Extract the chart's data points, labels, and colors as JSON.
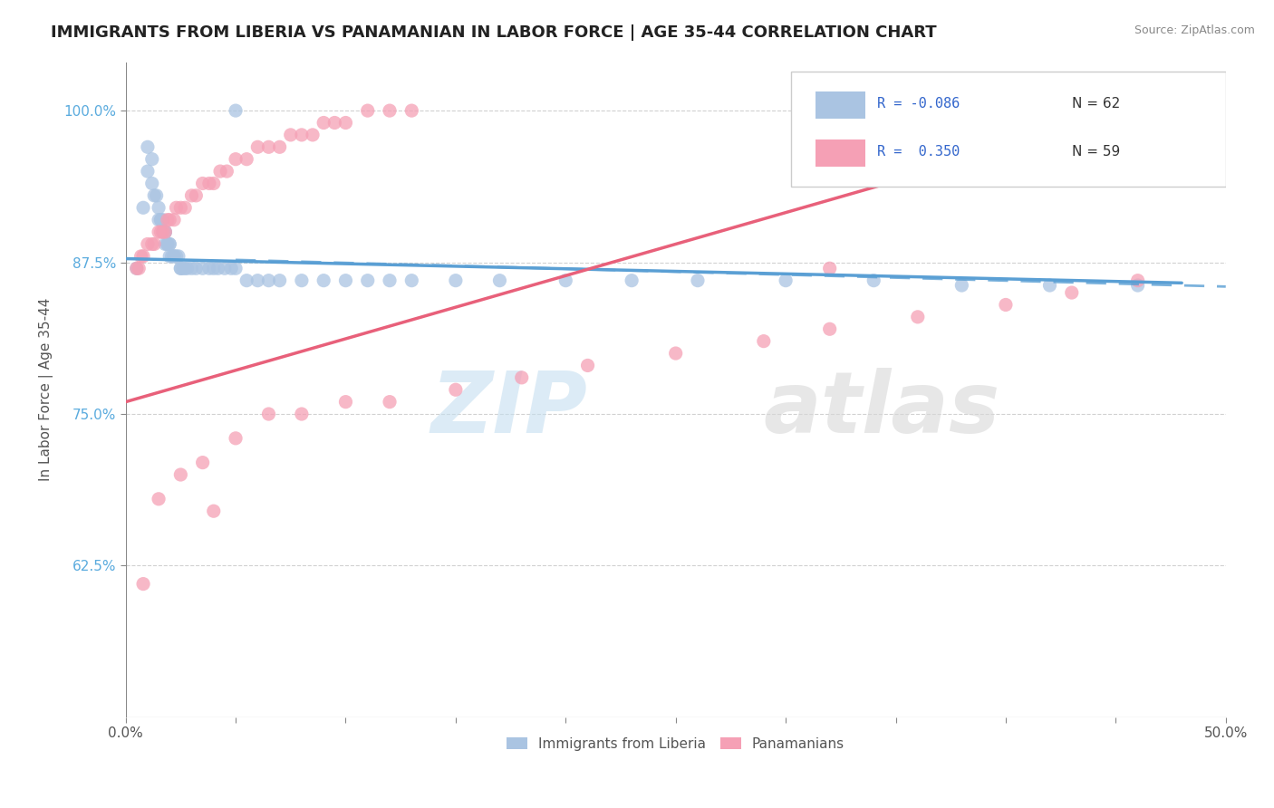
{
  "title": "IMMIGRANTS FROM LIBERIA VS PANAMANIAN IN LABOR FORCE | AGE 35-44 CORRELATION CHART",
  "source": "Source: ZipAtlas.com",
  "ylabel": "In Labor Force | Age 35-44",
  "xlim": [
    0.0,
    0.5
  ],
  "ylim": [
    0.5,
    1.04
  ],
  "yticks": [
    0.625,
    0.75,
    0.875,
    1.0
  ],
  "ytick_labels": [
    "62.5%",
    "75.0%",
    "87.5%",
    "100.0%"
  ],
  "xticks": [
    0.0,
    0.05,
    0.1,
    0.15,
    0.2,
    0.25,
    0.3,
    0.35,
    0.4,
    0.45,
    0.5
  ],
  "xtick_labels": [
    "0.0%",
    "",
    "",
    "",
    "",
    "",
    "",
    "",
    "",
    "",
    "50.0%"
  ],
  "color_blue": "#aac4e2",
  "color_pink": "#f5a0b5",
  "line_blue": "#5a9fd4",
  "line_pink": "#e8607a",
  "blue_scatter_x": [
    0.005,
    0.008,
    0.01,
    0.01,
    0.012,
    0.012,
    0.013,
    0.014,
    0.015,
    0.015,
    0.016,
    0.016,
    0.017,
    0.017,
    0.018,
    0.018,
    0.018,
    0.019,
    0.019,
    0.02,
    0.02,
    0.02,
    0.021,
    0.022,
    0.022,
    0.023,
    0.024,
    0.025,
    0.025,
    0.026,
    0.027,
    0.028,
    0.03,
    0.032,
    0.035,
    0.038,
    0.04,
    0.042,
    0.045,
    0.048,
    0.05,
    0.055,
    0.06,
    0.065,
    0.07,
    0.08,
    0.09,
    0.1,
    0.11,
    0.12,
    0.13,
    0.15,
    0.17,
    0.2,
    0.23,
    0.26,
    0.3,
    0.34,
    0.38,
    0.42,
    0.46,
    0.05
  ],
  "blue_scatter_y": [
    0.87,
    0.92,
    0.97,
    0.95,
    0.96,
    0.94,
    0.93,
    0.93,
    0.92,
    0.91,
    0.91,
    0.91,
    0.91,
    0.9,
    0.9,
    0.9,
    0.89,
    0.89,
    0.89,
    0.89,
    0.89,
    0.88,
    0.88,
    0.88,
    0.88,
    0.88,
    0.88,
    0.87,
    0.87,
    0.87,
    0.87,
    0.87,
    0.87,
    0.87,
    0.87,
    0.87,
    0.87,
    0.87,
    0.87,
    0.87,
    0.87,
    0.86,
    0.86,
    0.86,
    0.86,
    0.86,
    0.86,
    0.86,
    0.86,
    0.86,
    0.86,
    0.86,
    0.86,
    0.86,
    0.86,
    0.86,
    0.86,
    0.86,
    0.856,
    0.856,
    0.856,
    1.0
  ],
  "pink_scatter_x": [
    0.005,
    0.006,
    0.007,
    0.008,
    0.01,
    0.012,
    0.013,
    0.015,
    0.016,
    0.017,
    0.018,
    0.019,
    0.02,
    0.022,
    0.023,
    0.025,
    0.027,
    0.03,
    0.032,
    0.035,
    0.038,
    0.04,
    0.043,
    0.046,
    0.05,
    0.055,
    0.06,
    0.065,
    0.07,
    0.075,
    0.08,
    0.085,
    0.09,
    0.095,
    0.1,
    0.11,
    0.12,
    0.13,
    0.008,
    0.015,
    0.025,
    0.035,
    0.05,
    0.065,
    0.08,
    0.1,
    0.12,
    0.15,
    0.18,
    0.21,
    0.25,
    0.29,
    0.32,
    0.36,
    0.4,
    0.43,
    0.46,
    0.04,
    0.32
  ],
  "pink_scatter_y": [
    0.87,
    0.87,
    0.88,
    0.88,
    0.89,
    0.89,
    0.89,
    0.9,
    0.9,
    0.9,
    0.9,
    0.91,
    0.91,
    0.91,
    0.92,
    0.92,
    0.92,
    0.93,
    0.93,
    0.94,
    0.94,
    0.94,
    0.95,
    0.95,
    0.96,
    0.96,
    0.97,
    0.97,
    0.97,
    0.98,
    0.98,
    0.98,
    0.99,
    0.99,
    0.99,
    1.0,
    1.0,
    1.0,
    0.61,
    0.68,
    0.7,
    0.71,
    0.73,
    0.75,
    0.75,
    0.76,
    0.76,
    0.77,
    0.78,
    0.79,
    0.8,
    0.81,
    0.82,
    0.83,
    0.84,
    0.85,
    0.86,
    0.67,
    0.87
  ]
}
